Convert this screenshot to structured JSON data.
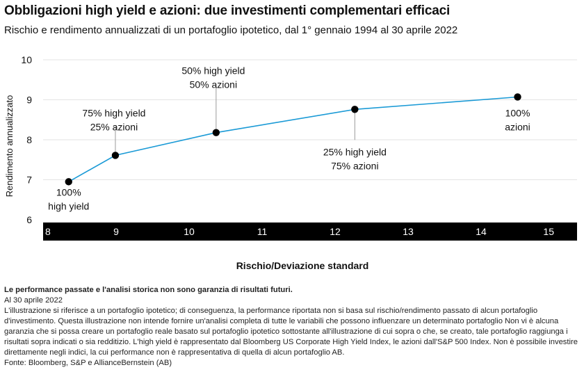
{
  "header": {
    "title": "Obbligazioni high yield e azioni: due investimenti complementari efficaci",
    "subtitle": "Rischio e rendimento annualizzati di un portafoglio ipotetico, dal 1° gennaio 1994 al 30 aprile 2022"
  },
  "chart_data": {
    "type": "line",
    "xlabel": "Rischio/Deviazione standard",
    "ylabel": "Rendimento annualizzato",
    "xlim": [
      8,
      15
    ],
    "ylim": [
      6,
      10
    ],
    "x_ticks": [
      "8",
      "9",
      "10",
      "11",
      "12",
      "13",
      "14",
      "15"
    ],
    "y_ticks": [
      "6",
      "7",
      "8",
      "9",
      "10"
    ],
    "grid": "horizontal",
    "line_color": "#1a9ad6",
    "point_color": "#000000",
    "x_axis_band_color": "#000000",
    "points": [
      {
        "x": 8.35,
        "y": 6.95,
        "label": [
          "100%",
          "high yield"
        ]
      },
      {
        "x": 8.99,
        "y": 7.61,
        "label": [
          "75% high yield",
          "25% azioni"
        ]
      },
      {
        "x": 10.37,
        "y": 8.18,
        "label": [
          "50% high yield",
          "50% azioni"
        ]
      },
      {
        "x": 12.27,
        "y": 8.76,
        "label": [
          "25% high yield",
          "75% azioni"
        ]
      },
      {
        "x": 14.5,
        "y": 9.07,
        "label": [
          "100%",
          "azioni"
        ]
      }
    ]
  },
  "notes": {
    "disclaimer": "Le performance passate e l'analisi storica non sono garanzia di risultati futuri.",
    "date": "Al 30 aprile 2022",
    "body": "L'illustrazione si riferisce a un portafoglio ipotetico; di conseguenza, la performance riportata non si basa sul rischio/rendimento passato di alcun portafoglio d'investimento. Questa illustrazione non intende fornire un'analisi completa di tutte le variabili che possono influenzare un determinato portafoglio Non vi è alcuna garanzia che si possa creare un portafoglio reale basato sul portafoglio ipotetico sottostante all'illustrazione di cui sopra o che, se creato, tale portafoglio raggiunga i risultati sopra indicati o sia redditizio. L'high yield è rappresentato dal Bloomberg US Corporate High Yield Index, le azioni dall'S&P 500 Index. Non è possibile investire direttamente negli indici, la cui performance non è rappresentativa di quella di alcun portafoglio AB.",
    "source": "Fonte: Bloomberg, S&P e AllianceBernstein (AB)"
  }
}
